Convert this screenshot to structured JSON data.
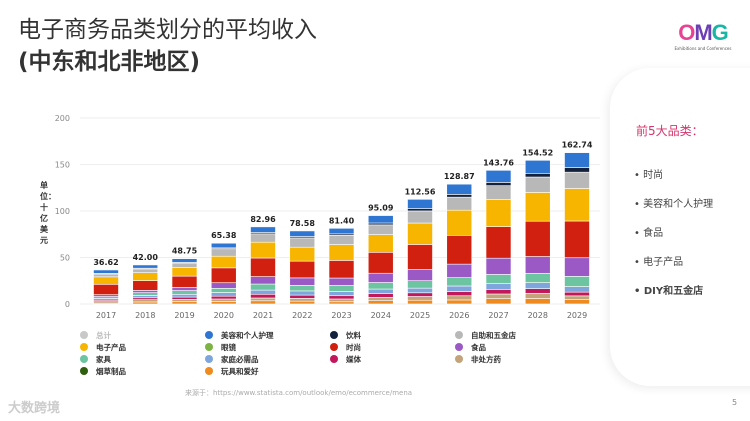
{
  "title": {
    "line1": "电子商务品类划分的平均收入",
    "line2": "(中东和北非地区)"
  },
  "logo": {
    "text": "OMG",
    "subtitle": "Exhibitions and Conferences"
  },
  "unit_label": "单位：十亿美元",
  "panel": {
    "heading": "前5大品类：",
    "items": [
      "时尚",
      "美容和个人护理",
      "食品",
      "电子产品",
      "DIY和五金店"
    ]
  },
  "source": "来源于：https://www.statista.com/outlook/emo/ecommerce/mena",
  "watermark": "大数跨境",
  "page_number": "5",
  "chart_data": {
    "type": "bar",
    "stacked": true,
    "ylim": [
      0,
      200
    ],
    "yticks": [
      0,
      50,
      100,
      150,
      200
    ],
    "grid": true,
    "categories": [
      "2017",
      "2018",
      "2019",
      "2020",
      "2021",
      "2022",
      "2023",
      "2024",
      "2025",
      "2026",
      "2027",
      "2028",
      "2029"
    ],
    "totals": [
      "36.62",
      "42.00",
      "48.75",
      "65.38",
      "82.96",
      "78.58",
      "81.40",
      "95.09",
      "112.56",
      "128.87",
      "143.76",
      "154.52",
      "162.74"
    ],
    "legend": [
      {
        "name": "总计",
        "color": "#c8c8c8"
      },
      {
        "name": "美容和个人护理",
        "color": "#2f76d2"
      },
      {
        "name": "饮料",
        "color": "#13213d"
      },
      {
        "name": "自助和五金店",
        "color": "#b8b8b8"
      },
      {
        "name": "电子产品",
        "color": "#f7b500"
      },
      {
        "name": "眼镜",
        "color": "#7cb342"
      },
      {
        "name": "时尚",
        "color": "#d11f10"
      },
      {
        "name": "食品",
        "color": "#9b59c6"
      },
      {
        "name": "家具",
        "color": "#6cc4a0"
      },
      {
        "name": "家庭必需品",
        "color": "#7fa6dc"
      },
      {
        "name": "媒体",
        "color": "#c2185b"
      },
      {
        "name": "非处方药",
        "color": "#c4a27a"
      },
      {
        "name": "烟草制品",
        "color": "#2e5e0e"
      },
      {
        "name": "玩具和爱好",
        "color": "#ef8a1e"
      }
    ],
    "series": [
      {
        "name": "玩具和爱好",
        "color": "#ef8a1e",
        "values": [
          1,
          2.2,
          2.45,
          2.88,
          3.46,
          3.08,
          2.4,
          3.59,
          4.06,
          4.37,
          5.76,
          6.02,
          4.74
        ]
      },
      {
        "name": "非处方药",
        "color": "#c4a27a",
        "values": [
          1.5,
          2.5,
          2.5,
          2.5,
          3,
          3,
          3,
          3.5,
          4,
          4.5,
          5,
          5.5,
          4
        ]
      },
      {
        "name": "媒体",
        "color": "#c2185b",
        "values": [
          1.5,
          2,
          2.5,
          3,
          4,
          3.5,
          3.5,
          4,
          4,
          4.5,
          5,
          5,
          4
        ]
      },
      {
        "name": "家庭必需品",
        "color": "#7fa6dc",
        "values": [
          2,
          2.5,
          3,
          4,
          4.5,
          4.5,
          4.5,
          5,
          5,
          6,
          6.5,
          6.5,
          6
        ]
      },
      {
        "name": "家具",
        "color": "#6cc4a0",
        "values": [
          2,
          3,
          4,
          4.5,
          6.5,
          6,
          6.5,
          7,
          8,
          9,
          9.5,
          10,
          11
        ]
      },
      {
        "name": "食品",
        "color": "#9b59c6",
        "values": [
          2,
          2.5,
          3.5,
          6,
          8,
          8,
          8,
          10,
          12,
          14.5,
          17.5,
          18,
          20
        ]
      },
      {
        "name": "时尚",
        "color": "#d11f10",
        "values": [
          11.2,
          10.5,
          12,
          16,
          20,
          18,
          19,
          22.5,
          27,
          31,
          34,
          38,
          39.5
        ]
      },
      {
        "name": "电子产品",
        "color": "#f7b500",
        "values": [
          8,
          8.5,
          9.5,
          12.5,
          17,
          15,
          17,
          19,
          23,
          27,
          29,
          31,
          35
        ]
      },
      {
        "name": "自助和五金店",
        "color": "#b8b8b8",
        "values": [
          3,
          4,
          4.5,
          8,
          9,
          10,
          10,
          10.5,
          13,
          14,
          15,
          16.5,
          17.5
        ]
      },
      {
        "name": "饮料",
        "color": "#13213d",
        "values": [
          0.8,
          0.8,
          0.8,
          1,
          1.5,
          1.5,
          1.5,
          2,
          2.5,
          3,
          3.5,
          4,
          5
        ]
      },
      {
        "name": "美容和个人护理",
        "color": "#2f76d2",
        "values": [
          3.6,
          3.5,
          4,
          5,
          6,
          6,
          6,
          8,
          10,
          11,
          13,
          14,
          16
        ]
      }
    ]
  }
}
